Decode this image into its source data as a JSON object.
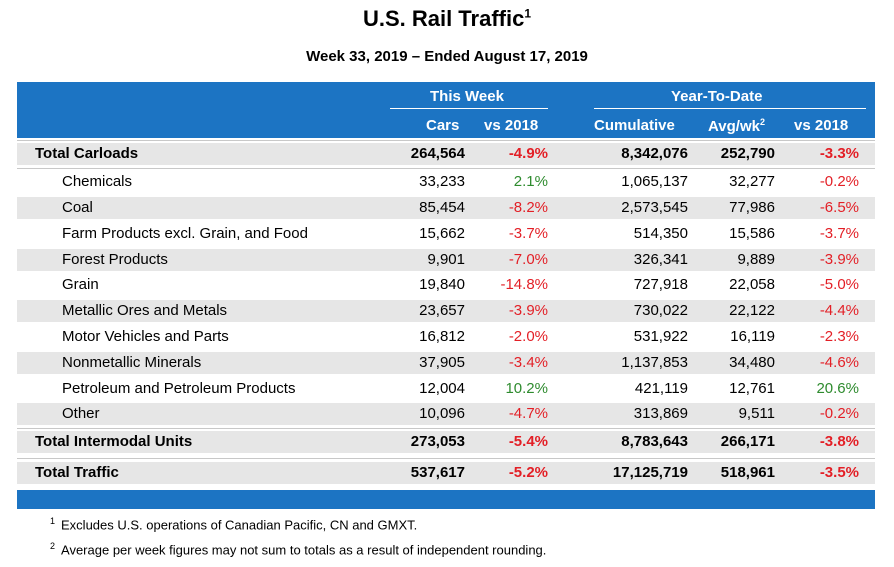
{
  "title": "U.S. Rail Traffic",
  "title_sup": "1",
  "subtitle": "Week 33, 2019 – Ended August 17, 2019",
  "headers": {
    "group_week": "This Week",
    "group_ytd": "Year-To-Date",
    "cars": "Cars",
    "vs2018_week": "vs 2018",
    "cumulative": "Cumulative",
    "avg": "Avg/wk",
    "avg_sup": "2",
    "vs2018_ytd": "vs 2018"
  },
  "chart_data": {
    "type": "table",
    "title": "U.S. Rail Traffic",
    "subtitle": "Week 33, 2019 – Ended August 17, 2019",
    "columns": [
      "Cars",
      "vs 2018",
      "Cumulative",
      "Avg/wk",
      "vs 2018"
    ],
    "rows": [
      {
        "label": "Total Carloads",
        "cars": "264,564",
        "week_vs": "-4.9%",
        "cumulative": "8,342,076",
        "avg": "252,790",
        "ytd_vs": "-3.3%"
      },
      {
        "label": "Chemicals",
        "cars": "33,233",
        "week_vs": "2.1%",
        "cumulative": "1,065,137",
        "avg": "32,277",
        "ytd_vs": "-0.2%"
      },
      {
        "label": "Coal",
        "cars": "85,454",
        "week_vs": "-8.2%",
        "cumulative": "2,573,545",
        "avg": "77,986",
        "ytd_vs": "-6.5%"
      },
      {
        "label": "Farm Products excl. Grain, and Food",
        "cars": "15,662",
        "week_vs": "-3.7%",
        "cumulative": "514,350",
        "avg": "15,586",
        "ytd_vs": "-3.7%"
      },
      {
        "label": "Forest Products",
        "cars": "9,901",
        "week_vs": "-7.0%",
        "cumulative": "326,341",
        "avg": "9,889",
        "ytd_vs": "-3.9%"
      },
      {
        "label": "Grain",
        "cars": "19,840",
        "week_vs": "-14.8%",
        "cumulative": "727,918",
        "avg": "22,058",
        "ytd_vs": "-5.0%"
      },
      {
        "label": "Metallic Ores and Metals",
        "cars": "23,657",
        "week_vs": "-3.9%",
        "cumulative": "730,022",
        "avg": "22,122",
        "ytd_vs": "-4.4%"
      },
      {
        "label": "Motor Vehicles and Parts",
        "cars": "16,812",
        "week_vs": "-2.0%",
        "cumulative": "531,922",
        "avg": "16,119",
        "ytd_vs": "-2.3%"
      },
      {
        "label": "Nonmetallic Minerals",
        "cars": "37,905",
        "week_vs": "-3.4%",
        "cumulative": "1,137,853",
        "avg": "34,480",
        "ytd_vs": "-4.6%"
      },
      {
        "label": "Petroleum and Petroleum Products",
        "cars": "12,004",
        "week_vs": "10.2%",
        "cumulative": "421,119",
        "avg": "12,761",
        "ytd_vs": "20.6%"
      },
      {
        "label": "Other",
        "cars": "10,096",
        "week_vs": "-4.7%",
        "cumulative": "313,869",
        "avg": "9,511",
        "ytd_vs": "-0.2%"
      },
      {
        "label": "Total Intermodal Units",
        "cars": "273,053",
        "week_vs": "-5.4%",
        "cumulative": "8,783,643",
        "avg": "266,171",
        "ytd_vs": "-3.8%"
      },
      {
        "label": "Total Traffic",
        "cars": "537,617",
        "week_vs": "-5.2%",
        "cumulative": "17,125,719",
        "avg": "518,961",
        "ytd_vs": "-3.5%"
      }
    ]
  },
  "footnotes": [
    {
      "mark": "1",
      "text": "Excludes U.S. operations of Canadian Pacific, CN and GMXT."
    },
    {
      "mark": "2",
      "text": "Average per week figures may not sum to totals as a result of independent rounding."
    }
  ],
  "colors": {
    "header": "#1c74c3",
    "negative": "#e31f26",
    "positive": "#2e8b2e",
    "shade": "#e6e6e6"
  }
}
